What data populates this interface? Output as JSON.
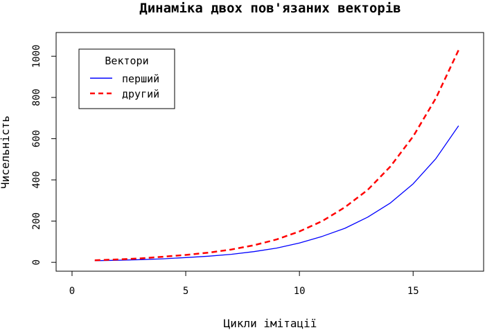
{
  "chart_data": {
    "type": "line",
    "title": "Динаміка двох пов'язаних векторів",
    "xlabel": "Цикли імітації",
    "ylabel": "Чисельність",
    "xlim": [
      -0.7,
      18.1
    ],
    "ylim": [
      -43,
      1115
    ],
    "x_ticks": [
      0,
      5,
      10,
      15
    ],
    "y_ticks": [
      0,
      200,
      400,
      600,
      800,
      1000
    ],
    "x_tick_labels": [
      "0",
      "5",
      "10",
      "15"
    ],
    "y_tick_labels": [
      "0",
      "200",
      "400",
      "600",
      "800",
      "1000"
    ],
    "grid": false,
    "legend": {
      "title": "Вектори",
      "position": "top-left"
    },
    "x": [
      1,
      2,
      3,
      4,
      5,
      6,
      7,
      8,
      9,
      10,
      11,
      12,
      13,
      14,
      15,
      16,
      17
    ],
    "series": [
      {
        "name": "перший",
        "color": "#0000ff",
        "style": "solid",
        "values": [
          8,
          10,
          13,
          17,
          23,
          30,
          39,
          52,
          69,
          94,
          126,
          165,
          219,
          288,
          381,
          503,
          663
        ]
      },
      {
        "name": "другий",
        "color": "#ff0000",
        "style": "dashed",
        "values": [
          10,
          14,
          19,
          27,
          36,
          47,
          62,
          83,
          111,
          150,
          200,
          267,
          351,
          465,
          611,
          796,
          1030
        ]
      }
    ]
  }
}
